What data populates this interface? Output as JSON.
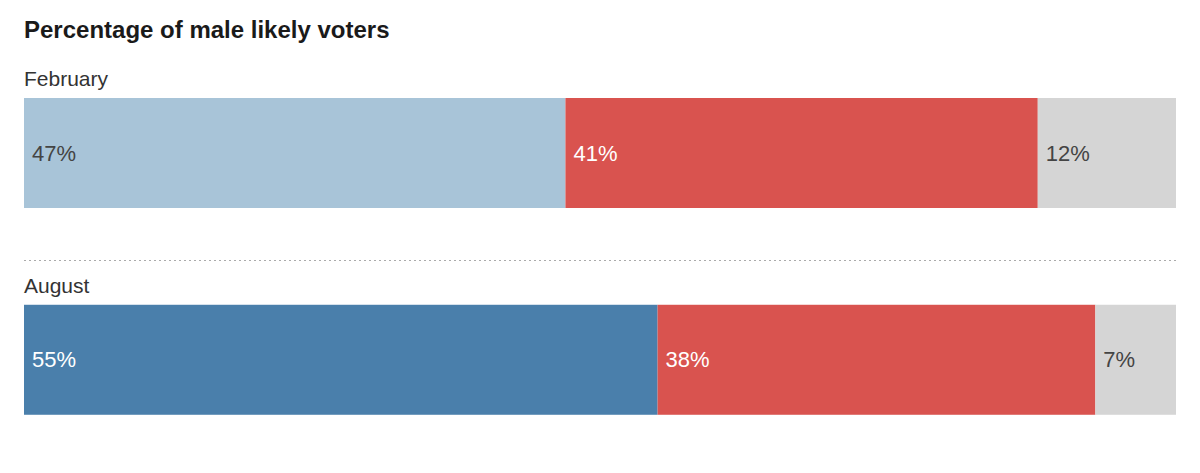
{
  "chart_data": {
    "type": "bar",
    "orientation": "horizontal",
    "stacked": true,
    "title": "Percentage of male likely voters",
    "categories": [
      "February",
      "August"
    ],
    "series": [
      {
        "values": [
          47,
          55
        ],
        "value_labels": [
          "47%",
          "55%"
        ],
        "colors": [
          "#a8c4d8",
          "#4a7fab"
        ]
      },
      {
        "values": [
          41,
          38
        ],
        "value_labels": [
          "41%",
          "38%"
        ],
        "color": "#d9534f"
      },
      {
        "values": [
          12,
          7
        ],
        "value_labels": [
          "12%",
          "7%"
        ],
        "color": "#d5d5d5"
      }
    ],
    "xlim": [
      0,
      100
    ],
    "tick_labels": false,
    "grid": false,
    "data_labels": true
  }
}
